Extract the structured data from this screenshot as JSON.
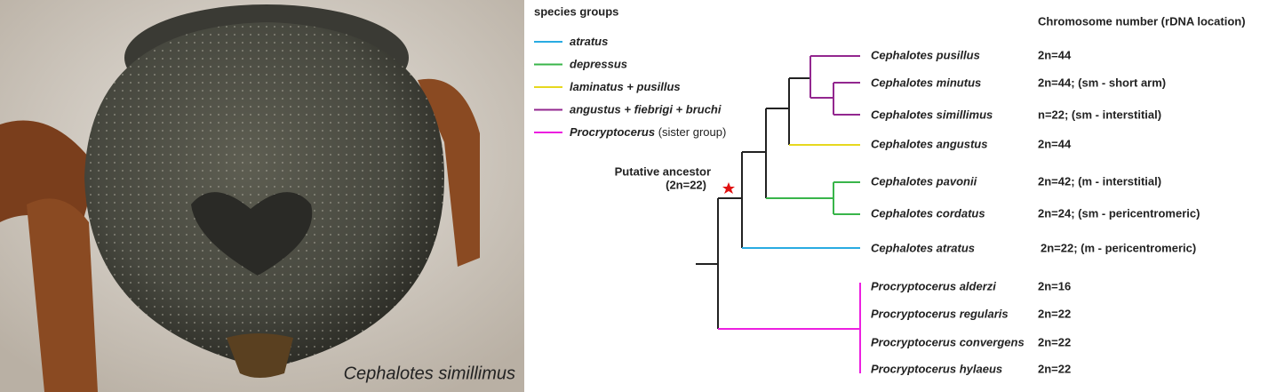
{
  "photo_caption": "Cephalotes simillimus",
  "legend": {
    "title": "species groups",
    "items": [
      {
        "label": "atratus",
        "color": "#29abe2"
      },
      {
        "label": "depressus",
        "color": "#39b54a"
      },
      {
        "label": "laminatus + pusillus",
        "color": "#e6d81e"
      },
      {
        "label": "angustus + fiebrigi + bruchi",
        "color": "#93278f"
      },
      {
        "label": "Procryptocerus",
        "note": "(sister group)",
        "color": "#ec1fe0"
      }
    ]
  },
  "column_header": "Chromosome number (rDNA location)",
  "ancestor": {
    "label": "Putative ancestor",
    "count": "(2n=22)"
  },
  "tips": [
    {
      "species": "Cephalotes pusillus",
      "chromosomes": "2n=44"
    },
    {
      "species": "Cephalotes minutus",
      "chromosomes": "2n=44; (sm - short arm)"
    },
    {
      "species": "Cephalotes simillimus",
      "chromosomes": "n=22; (sm - interstitial)"
    },
    {
      "species": "Cephalotes angustus",
      "chromosomes": "2n=44"
    },
    {
      "species": "Cephalotes pavonii",
      "chromosomes": "2n=42; (m - interstitial)"
    },
    {
      "species": "Cephalotes cordatus",
      "chromosomes": "2n=24; (sm - pericentromeric)"
    },
    {
      "species": "Cephalotes atratus",
      "chromosomes": "2n=22; (m - pericentromeric)"
    },
    {
      "species": "Procryptocerus alderzi",
      "chromosomes": "2n=16"
    },
    {
      "species": "Procryptocerus regularis",
      "chromosomes": "2n=22"
    },
    {
      "species": "Procryptocerus convergens",
      "chromosomes": "2n=22"
    },
    {
      "species": "Procryptocerus hylaeus",
      "chromosomes": "2n=22"
    }
  ]
}
